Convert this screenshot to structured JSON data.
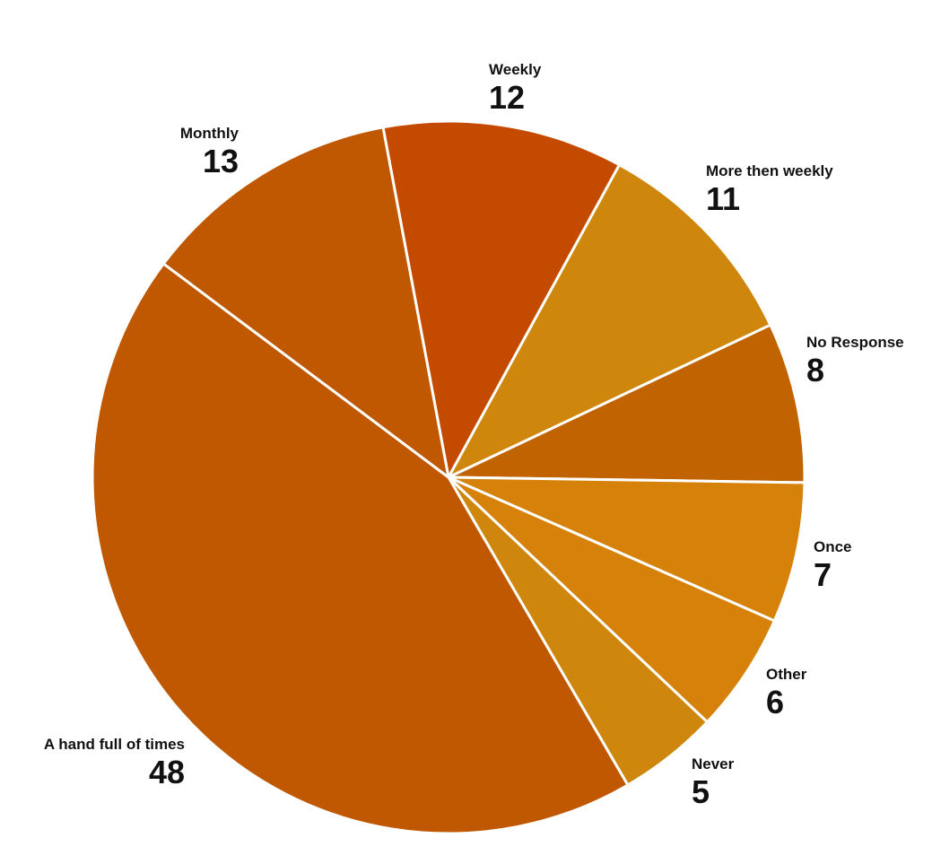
{
  "chart_data": {
    "type": "pie",
    "title": "",
    "slices": [
      {
        "label": "Weekly",
        "value": 12,
        "color": "#C44A00"
      },
      {
        "label": "More then weekly",
        "value": 11,
        "color": "#CE860C"
      },
      {
        "label": "No Response",
        "value": 8,
        "color": "#C06300"
      },
      {
        "label": "Once",
        "value": 7,
        "color": "#D6810A"
      },
      {
        "label": "Other",
        "value": 6,
        "color": "#D6810A"
      },
      {
        "label": "Never",
        "value": 5,
        "color": "#CE860C"
      },
      {
        "label": "A hand full of times",
        "value": 48,
        "color": "#BF5800"
      },
      {
        "label": "Monthly",
        "value": 13,
        "color": "#BF5800"
      }
    ],
    "legend": "none"
  }
}
